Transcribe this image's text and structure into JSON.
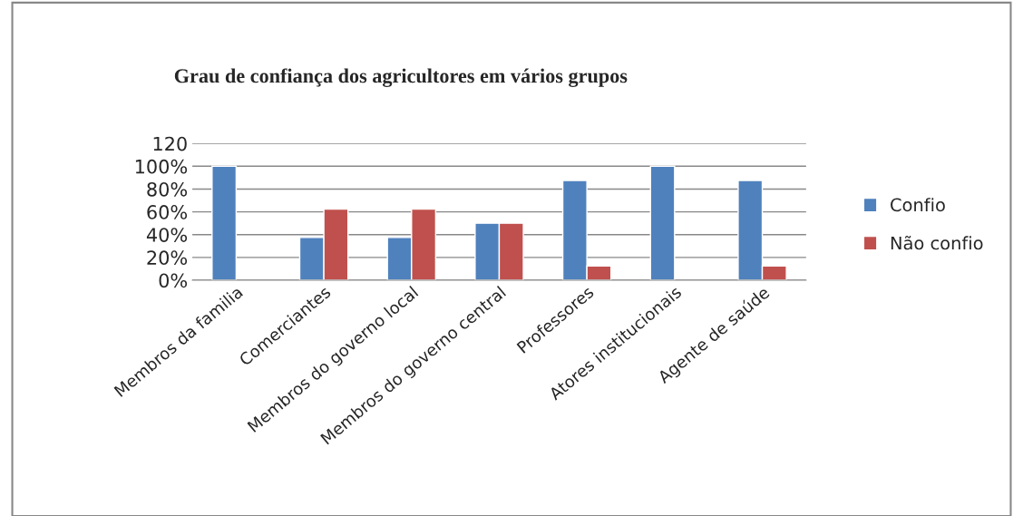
{
  "chart_data": {
    "type": "bar",
    "title": "Grau de confiança dos agricultores em vários grupos",
    "categories": [
      "Membros da familia",
      "Comerciantes",
      "Membros do governo local",
      "Membros do governo central",
      "Professores",
      "Atores institucionais",
      "Agente de saúde"
    ],
    "series": [
      {
        "name": "Confio",
        "color": "#4f81bd",
        "values": [
          100,
          37.5,
          37.5,
          50,
          87.5,
          100,
          87.5
        ]
      },
      {
        "name": "Não confio",
        "color": "#c0504d",
        "values": [
          null,
          62.5,
          62.5,
          50,
          12.5,
          null,
          12.5
        ]
      }
    ],
    "ylim": [
      0,
      120
    ],
    "yticks": [
      {
        "value": 0,
        "label": "0%"
      },
      {
        "value": 20,
        "label": "20%"
      },
      {
        "value": 40,
        "label": "40%"
      },
      {
        "value": 60,
        "label": "60%"
      },
      {
        "value": 80,
        "label": "80%"
      },
      {
        "value": 100,
        "label": "100%"
      },
      120
    ],
    "grid": "y",
    "legend": "right"
  }
}
